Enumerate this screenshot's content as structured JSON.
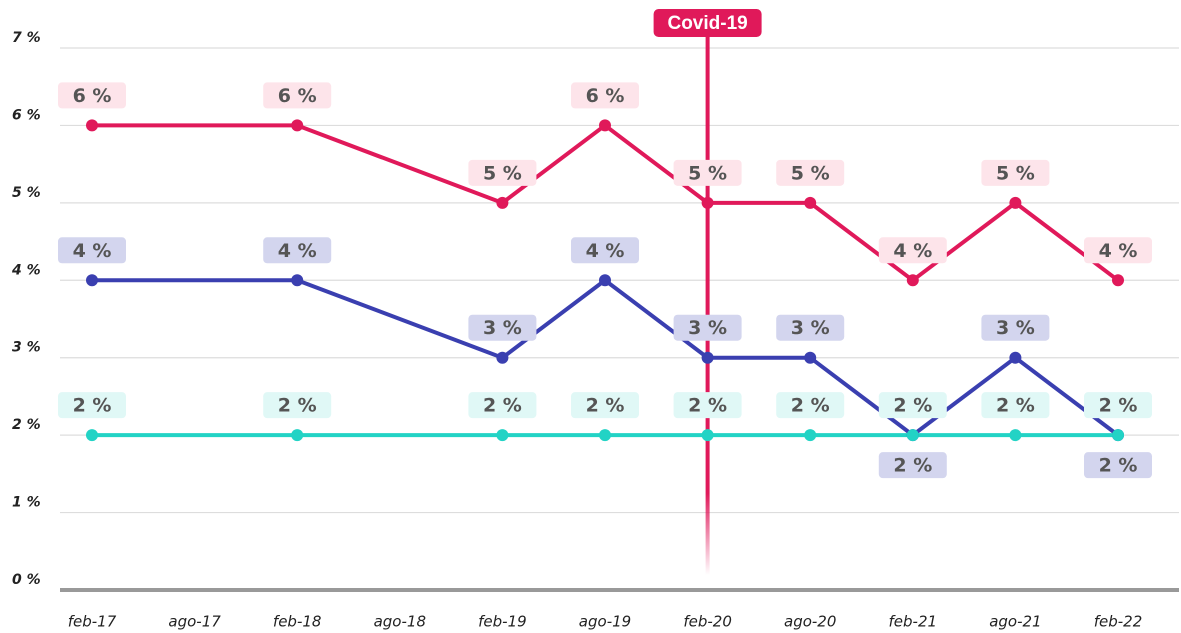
{
  "chart_data": {
    "type": "line",
    "categories": [
      "feb-17",
      "ago-17",
      "feb-18",
      "ago-18",
      "feb-19",
      "ago-19",
      "feb-20",
      "ago-20",
      "feb-21",
      "ago-21",
      "feb-22"
    ],
    "x": [
      "feb-17",
      "feb-18",
      "feb-19",
      "ago-19",
      "feb-20",
      "ago-20",
      "feb-21",
      "ago-21",
      "feb-22"
    ],
    "series": [
      {
        "color": "#e0195a",
        "label_bg": "#fde4ea",
        "values": [
          6,
          6,
          5,
          6,
          5,
          5,
          4,
          5,
          4
        ],
        "value_labels": [
          "6 %",
          "6 %",
          "5 %",
          "6 %",
          "5 %",
          "5 %",
          "4 %",
          "5 %",
          "4 %"
        ]
      },
      {
        "color": "#3a3fb0",
        "label_bg": "#d3d5ee",
        "values": [
          4,
          4,
          3,
          4,
          3,
          3,
          2,
          3,
          2
        ],
        "value_labels": [
          "4 %",
          "4 %",
          "3 %",
          "4 %",
          "3 %",
          "3 %",
          "2 %",
          "3 %",
          "2 %"
        ]
      },
      {
        "color": "#22d3c5",
        "label_bg": "#e0f8f6",
        "values": [
          2,
          2,
          2,
          2,
          2,
          2,
          2,
          2,
          2
        ],
        "value_labels": [
          "2 %",
          "2 %",
          "2 %",
          "2 %",
          "2 %",
          "2 %",
          "2 %",
          "2 %",
          "2 %"
        ]
      }
    ],
    "ylim": [
      0,
      7
    ],
    "yticks": [
      {
        "value": 0,
        "label": "0 %"
      },
      {
        "value": 1,
        "label": "1 %"
      },
      {
        "value": 2,
        "label": "2 %"
      },
      {
        "value": 3,
        "label": "3 %"
      },
      {
        "value": 4,
        "label": "4 %"
      },
      {
        "value": 5,
        "label": "5 %"
      },
      {
        "value": 6,
        "label": "6 %"
      },
      {
        "value": 7,
        "label": "7 %"
      }
    ],
    "grid": true,
    "annotation": {
      "text": "Covid-19",
      "x": "feb-20",
      "color": "#e0195a"
    }
  }
}
